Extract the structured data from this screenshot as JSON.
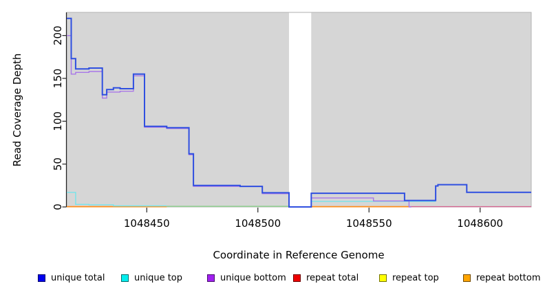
{
  "chart": {
    "title": "",
    "x_axis": {
      "label": "Coordinate in Reference Genome",
      "ticks": [
        1048450,
        1048500,
        1048550,
        1048600
      ],
      "range": [
        1048414,
        1048623
      ]
    },
    "y_axis": {
      "label": "Read Coverage Depth",
      "ticks": [
        0,
        50,
        100,
        150,
        200
      ],
      "range": [
        0,
        227
      ]
    },
    "legend": {
      "items": [
        {
          "label": "unique total",
          "color": "#0000ee"
        },
        {
          "label": "unique top",
          "color": "#00eeee"
        },
        {
          "label": "unique bottom",
          "color": "#a020f0"
        },
        {
          "label": "repeat total",
          "color": "#ee0000"
        },
        {
          "label": "repeat top",
          "color": "#ffff00"
        },
        {
          "label": "repeat bottom",
          "color": "#ffa500"
        }
      ]
    }
  },
  "chart_data": {
    "type": "line",
    "title": "",
    "xlabel": "Coordinate in Reference Genome",
    "ylabel": "Read Coverage Depth",
    "x_range": [
      1048414,
      1048623
    ],
    "y_range": [
      0,
      227
    ],
    "grid": false,
    "plot_bg": "#d6d6d6",
    "legend_position": "bottom",
    "gap_region": {
      "from": 1048514,
      "to": 1048524
    },
    "series": [
      {
        "name": "repeat top",
        "color": "#ffff00",
        "layer": "base",
        "visible": false,
        "line_width": 1,
        "points": [
          [
            1048414,
            0
          ],
          [
            1048623,
            0
          ]
        ]
      },
      {
        "name": "repeat total",
        "color": "#ee0000",
        "layer": "base",
        "visible": false,
        "line_width": 1,
        "points": [
          [
            1048414,
            0
          ],
          [
            1048623,
            0
          ]
        ]
      },
      {
        "name": "baseline blend cyan+yellow",
        "color": "#90cf90",
        "layer": "base",
        "visible": true,
        "line_width": 1.5,
        "points": [
          [
            1048459,
            0.7
          ],
          [
            1048514,
            0.7
          ]
        ]
      },
      {
        "name": "repeat bottom",
        "color": "#ff8c1a",
        "layer": "base",
        "visible": true,
        "line_width": 1.7,
        "points": [
          [
            1048414,
            0.3
          ],
          [
            1048459,
            0.3
          ],
          null,
          [
            1048524,
            0.3
          ],
          [
            1048568,
            0.3
          ]
        ]
      },
      {
        "name": "baseline blend red+purple",
        "color": "#d4648f",
        "layer": "base",
        "visible": true,
        "line_width": 1.4,
        "points": [
          [
            1048568,
            0.3
          ],
          [
            1048623,
            0.3
          ]
        ]
      },
      {
        "name": "unique top",
        "color": "#76e4ea",
        "layer": "main",
        "visible": true,
        "line_width": 1.4,
        "points": [
          [
            1048414,
            17
          ],
          [
            1048418,
            3
          ],
          [
            1048424,
            2.5
          ],
          [
            1048435,
            1.2
          ],
          [
            1048459,
            1.2
          ],
          null,
          [
            1048524,
            6.5
          ],
          [
            1048580,
            6.5
          ]
        ]
      },
      {
        "name": "unique bottom",
        "color": "#a877e8",
        "layer": "main",
        "visible": true,
        "line_width": 1.4,
        "points": [
          [
            1048414,
            200
          ],
          [
            1048416,
            155
          ],
          [
            1048418,
            157
          ],
          [
            1048424,
            158
          ],
          [
            1048430,
            127
          ],
          [
            1048432,
            134
          ],
          [
            1048438,
            135
          ],
          [
            1048444,
            153
          ],
          [
            1048449,
            93
          ],
          [
            1048459,
            91.5
          ],
          [
            1048469,
            61
          ],
          [
            1048471,
            24
          ],
          [
            1048502,
            15.5
          ],
          [
            1048514,
            0
          ],
          [
            1048524,
            10.5
          ],
          [
            1048552,
            7
          ],
          [
            1048568,
            0
          ],
          [
            1048569,
            0
          ]
        ]
      },
      {
        "name": "unique total",
        "color": "#2f4fe0",
        "layer": "main",
        "visible": true,
        "line_width": 2,
        "points": [
          [
            1048414,
            220
          ],
          [
            1048416,
            173
          ],
          [
            1048418,
            161
          ],
          [
            1048424,
            162
          ],
          [
            1048430,
            131
          ],
          [
            1048432,
            137
          ],
          [
            1048435,
            139
          ],
          [
            1048438,
            138
          ],
          [
            1048444,
            155
          ],
          [
            1048449,
            94
          ],
          [
            1048459,
            92.5
          ],
          [
            1048469,
            62
          ],
          [
            1048471,
            25
          ],
          [
            1048492,
            24
          ],
          [
            1048502,
            16.5
          ],
          [
            1048514,
            0
          ],
          [
            1048524,
            16
          ],
          [
            1048566,
            7.5
          ],
          [
            1048580,
            24.5
          ],
          [
            1048581,
            26
          ],
          [
            1048594,
            17
          ],
          [
            1048623,
            17
          ]
        ]
      }
    ]
  }
}
